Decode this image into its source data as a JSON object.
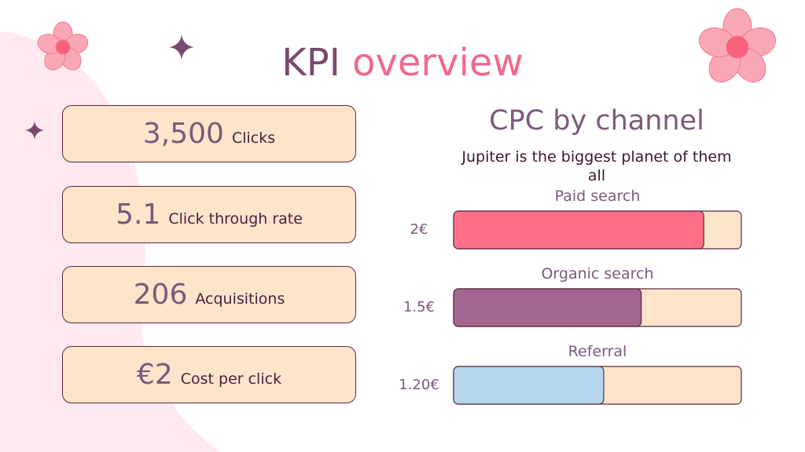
{
  "header": {
    "title_main": "KPI",
    "title_accent": "overview"
  },
  "kpis": [
    {
      "value": "3,500",
      "label": "Clicks"
    },
    {
      "value": "5.1",
      "label": "Click through rate"
    },
    {
      "value": "206",
      "label": "Acquisitions"
    },
    {
      "value": "€2",
      "label": "Cost per click"
    }
  ],
  "chart_data": {
    "type": "bar",
    "orientation": "horizontal",
    "title": "CPC by channel",
    "subtitle": "Jupiter is the biggest planet of them all",
    "categories": [
      "Paid search",
      "Organic search",
      "Referral"
    ],
    "values": [
      2,
      1.5,
      1.2
    ],
    "value_labels": [
      "2€",
      "1.5€",
      "1.20€"
    ],
    "colors": [
      "#ff6f8a",
      "#a2668f",
      "#b5d6ec"
    ],
    "xlim": [
      0,
      2.3
    ]
  }
}
